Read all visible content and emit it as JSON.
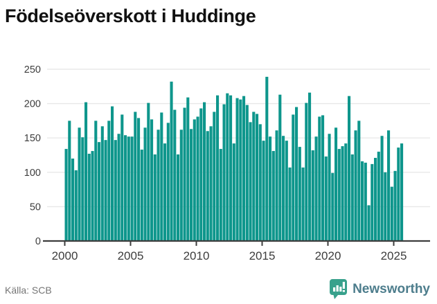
{
  "title": "Födelseöverskott i Huddinge",
  "source": "Källa: SCB",
  "logo": {
    "text": "Newsworthy"
  },
  "colors": {
    "bar": "#0e968c",
    "grid": "#e8e8e8",
    "axis": "#3d3d3d",
    "tick_label": "#3d3d3d",
    "title": "#111111",
    "source_text": "#757575",
    "logo_text": "#4d7d8c",
    "logo_icon": "#38a18c"
  },
  "chart_data": {
    "type": "bar",
    "title": "Födelseöverskott i Huddinge",
    "xlabel": "",
    "ylabel": "",
    "frequency": "quarterly",
    "x_start": {
      "year": 2000,
      "quarter": 1
    },
    "x_end": {
      "year": 2025,
      "quarter": 3
    },
    "ylim": [
      0,
      250
    ],
    "y_ticks": [
      0,
      50,
      100,
      150,
      200,
      250
    ],
    "x_ticks": [
      2000,
      2005,
      2010,
      2015,
      2020,
      2025
    ],
    "grid": true,
    "legend": false,
    "values": [
      134,
      175,
      120,
      103,
      165,
      151,
      202,
      127,
      131,
      175,
      144,
      167,
      147,
      175,
      196,
      147,
      156,
      184,
      154,
      152,
      152,
      188,
      179,
      133,
      165,
      201,
      177,
      126,
      162,
      187,
      142,
      172,
      232,
      191,
      126,
      162,
      194,
      209,
      163,
      177,
      181,
      193,
      202,
      160,
      167,
      188,
      212,
      134,
      199,
      215,
      212,
      142,
      208,
      206,
      211,
      198,
      173,
      188,
      185,
      170,
      146,
      239,
      152,
      131,
      161,
      213,
      153,
      146,
      107,
      184,
      195,
      137,
      107,
      201,
      216,
      132,
      152,
      181,
      183,
      123,
      156,
      99,
      165,
      134,
      138,
      142,
      211,
      126,
      161,
      175,
      116,
      114,
      52,
      112,
      121,
      130,
      153,
      100,
      161,
      79,
      102,
      136,
      142
    ]
  }
}
